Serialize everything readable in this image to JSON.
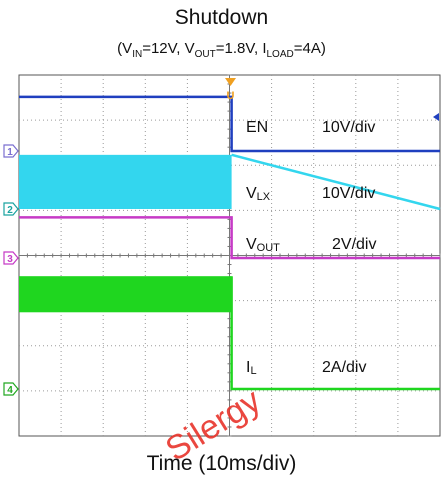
{
  "chart_data": {
    "type": "line",
    "title": "Shutdown",
    "subtitle": {
      "vin_sym": "V",
      "vin_sub": "IN",
      "vin_val": "=12V, ",
      "vout_sym": "V",
      "vout_sub": "OUT",
      "vout_val": "=1.8V, ",
      "iload_sym": "I",
      "iload_sub": "LOAD",
      "iload_val": "=4A"
    },
    "xlabel": "Time (10ms/div)",
    "ylabel": "",
    "grid": true,
    "divisions": {
      "x": 10,
      "y": 8
    },
    "xlim": [
      0,
      100
    ],
    "units": {
      "x": "ms"
    },
    "trigger_marker": "U",
    "watermark": "Silergy",
    "colors": {
      "EN": "#1f3fbf",
      "VLX": "#33d6ee",
      "VOUT": "#c63ac6",
      "IL": "#1fd61f",
      "grid": "#9a9a9a"
    },
    "series": [
      {
        "name": "EN",
        "label_sym": "EN",
        "label_sub": "",
        "scale": "10V/div",
        "marker": "1",
        "marker_color": "#7b6fd0",
        "high": 1.2,
        "low": 0.0,
        "t_fall": 50.5
      },
      {
        "name": "VLX",
        "label_sym": "V",
        "label_sub": "LX",
        "scale": "10V/div",
        "marker": "2",
        "marker_color": "#1aa3a0",
        "switching": true,
        "band_top": 1.2,
        "band_bottom": 0.0,
        "t_fall": 50.5
      },
      {
        "name": "VOUT",
        "label_sym": "V",
        "label_sub": "OUT",
        "scale": "2V/div",
        "marker": "3",
        "marker_color": "#c63ac6",
        "high": 0.9,
        "low": 0.0,
        "t_fall": 50.5
      },
      {
        "name": "IL",
        "label_sym": "I",
        "label_sub": "L",
        "scale": "2A/div",
        "marker": "4",
        "marker_color": "#22a822",
        "switching": true,
        "band_top": 2.5,
        "band_bottom": 1.7,
        "low": 0.0,
        "t_fall": 50.5
      }
    ]
  }
}
